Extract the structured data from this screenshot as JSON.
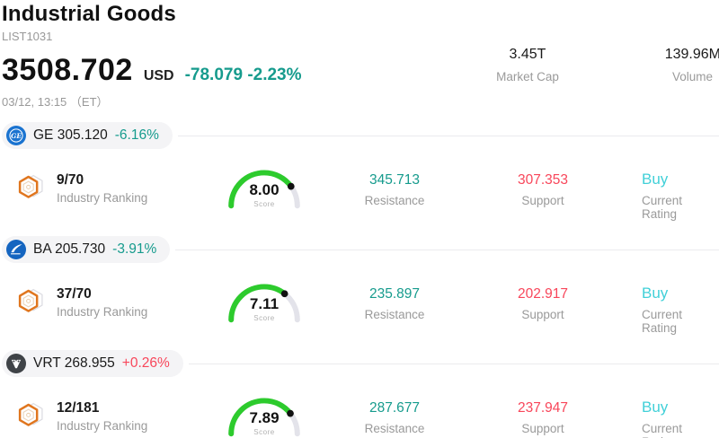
{
  "header": {
    "title": "Industrial Goods",
    "code": "LIST1031",
    "price": "3508.702",
    "currency": "USD",
    "change": "-78.079 -2.23%",
    "change_dir": "down",
    "timestamp": "03/12, 13:15 （ET）",
    "market_cap": {
      "value": "3.45T",
      "label": "Market Cap"
    },
    "volume": {
      "value": "139.96M",
      "label": "Volume"
    }
  },
  "labels": {
    "industry_ranking": "Industry Ranking",
    "score": "Score",
    "resistance": "Resistance",
    "support": "Support",
    "current_rating": "Current Rating"
  },
  "colors": {
    "down": "#169b8d",
    "up": "#f8465a",
    "buy": "#41d0d8",
    "gauge_green": "#2dcb2d",
    "gauge_track": "#e3e3ea"
  },
  "stocks": [
    {
      "symbol_price": "GE 305.120",
      "change": "-6.16%",
      "change_dir": "down",
      "logo_icon": "ge-logo",
      "ranking": "9/70",
      "score": 8.0,
      "score_text": "8.00",
      "resistance": "345.713",
      "support": "307.353",
      "rating": "Buy"
    },
    {
      "symbol_price": "BA 205.730",
      "change": "-3.91%",
      "change_dir": "down",
      "logo_icon": "ba-logo",
      "ranking": "37/70",
      "score": 7.11,
      "score_text": "7.11",
      "resistance": "235.897",
      "support": "202.917",
      "rating": "Buy"
    },
    {
      "symbol_price": "VRT 268.955",
      "change": "+0.26%",
      "change_dir": "up",
      "logo_icon": "vrt-logo",
      "ranking": "12/181",
      "score": 7.89,
      "score_text": "7.89",
      "resistance": "287.677",
      "support": "237.947",
      "rating": "Buy"
    }
  ]
}
